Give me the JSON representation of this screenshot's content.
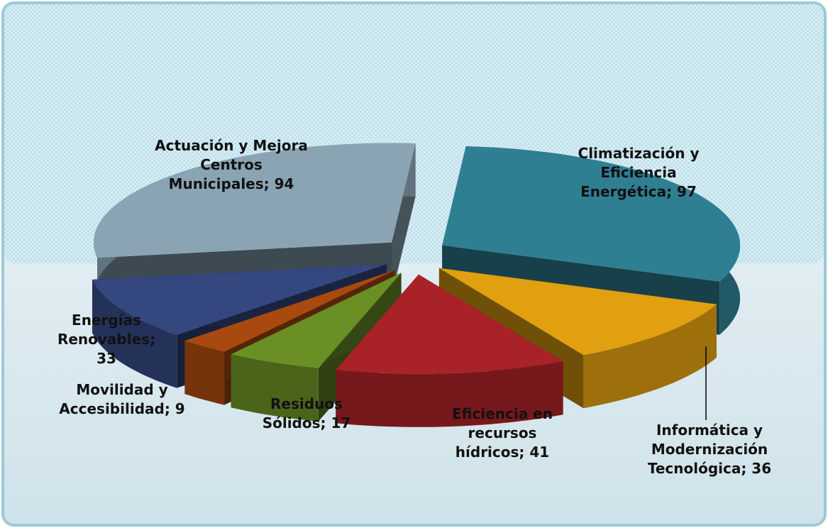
{
  "chart_data": {
    "type": "pie",
    "value_labels": [
      "Climatización y Eficiencia Energética; 97",
      "Informática y Modernización Tecnológica;  36",
      "Eficiencia en recursos hídricos; 41",
      "Residuos Sólidos; 17",
      "Movilidad y Accesibilidad; 9",
      "Energías Renovables; 33",
      "Actuación y Mejora Centros Municipales; 94"
    ],
    "values": [
      97,
      36,
      41,
      17,
      9,
      33,
      94
    ],
    "colors": [
      "#2f7f93",
      "#e0a010",
      "#a82228",
      "#6a8f25",
      "#a84a10",
      "#34477f",
      "#8aa4b4"
    ]
  }
}
